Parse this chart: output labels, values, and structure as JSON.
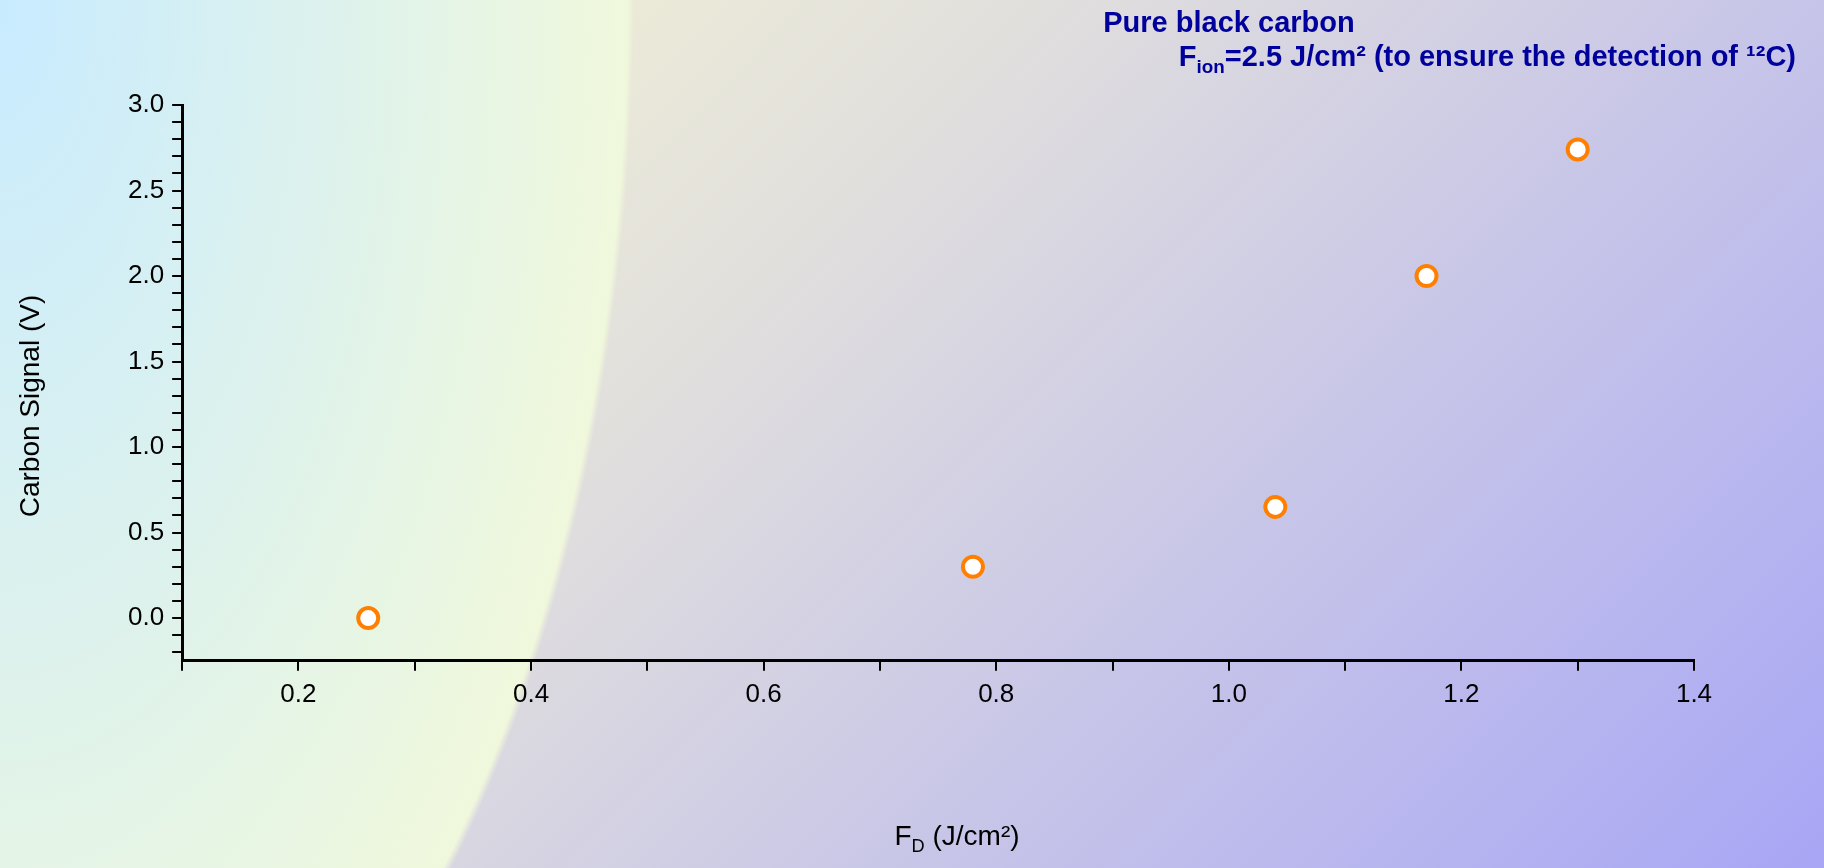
{
  "chart_data": {
    "type": "scatter",
    "title": "Pure black carbon",
    "subtitle": "F$_{ion}$=2.5 J/cm² (to ensure the detection of ¹²C)",
    "xlabel": "F$_{D}$ (J/cm²)",
    "ylabel": "Carbon Signal (V)",
    "x": [
      0.26,
      0.78,
      1.04,
      1.17,
      1.3
    ],
    "values": [
      0.0,
      0.3,
      0.65,
      2.0,
      2.74
    ],
    "color": "#ff8000",
    "marker": "circle",
    "grid": false,
    "legend": false,
    "xlim": [
      0.1,
      1.4
    ],
    "xticks": [
      {
        "value": 0.1,
        "label": null
      },
      0.2,
      {
        "value": 0.3,
        "label": null
      },
      0.4,
      {
        "value": 0.5,
        "label": null
      },
      0.6,
      {
        "value": 0.7,
        "label": null
      },
      0.8,
      {
        "value": 0.9,
        "label": null
      },
      {
        "value": 1.0,
        "label": "1.0"
      },
      {
        "value": 1.1,
        "label": null
      },
      1.2,
      {
        "value": 1.3,
        "label": null
      },
      1.4
    ],
    "ylim": [
      -0.25,
      3.0
    ],
    "yticks": [
      {
        "value": -0.2,
        "label": null
      },
      {
        "value": -0.1,
        "label": null
      },
      {
        "value": 0,
        "label": "0.0"
      },
      {
        "value": 0.1,
        "label": null
      },
      {
        "value": 0.2,
        "label": null
      },
      {
        "value": 0.3,
        "label": null
      },
      {
        "value": 0.4,
        "label": null
      },
      0.5,
      {
        "value": 0.6,
        "label": null
      },
      {
        "value": 0.7,
        "label": null
      },
      {
        "value": 0.8,
        "label": null
      },
      {
        "value": 0.9,
        "label": null
      },
      {
        "value": 1.0,
        "label": "1.0"
      },
      {
        "value": 1.1,
        "label": null
      },
      {
        "value": 1.2,
        "label": null
      },
      {
        "value": 1.3,
        "label": null
      },
      {
        "value": 1.4,
        "label": null
      },
      1.5,
      {
        "value": 1.6,
        "label": null
      },
      {
        "value": 1.7,
        "label": null
      },
      {
        "value": 1.8,
        "label": null
      },
      {
        "value": 1.9,
        "label": null
      },
      {
        "value": 2.0,
        "label": "2.0"
      },
      {
        "value": 2.1,
        "label": null
      },
      {
        "value": 2.2,
        "label": null
      },
      {
        "value": 2.3,
        "label": null
      },
      {
        "value": 2.4,
        "label": null
      },
      2.5,
      {
        "value": 2.6,
        "label": null
      },
      {
        "value": 2.7,
        "label": null
      },
      {
        "value": 2.8,
        "label": null
      },
      {
        "value": 2.9,
        "label": null
      },
      {
        "value": 3.0,
        "label": "3.0"
      }
    ]
  }
}
